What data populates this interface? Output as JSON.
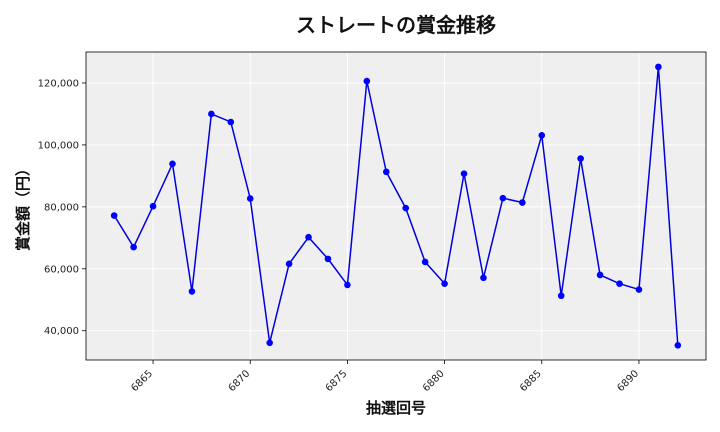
{
  "chart_data": {
    "type": "line",
    "title": "ストレートの賞金推移",
    "xlabel": "抽選回号",
    "ylabel": "賞金額（円）",
    "x": [
      6863,
      6864,
      6865,
      6866,
      6867,
      6868,
      6869,
      6870,
      6871,
      6872,
      6873,
      6874,
      6875,
      6876,
      6877,
      6878,
      6879,
      6880,
      6881,
      6882,
      6883,
      6884,
      6885,
      6886,
      6887,
      6888,
      6889,
      6890,
      6891,
      6892
    ],
    "y": [
      77200,
      67000,
      80200,
      93900,
      52700,
      110000,
      107400,
      82700,
      36100,
      61600,
      70200,
      63200,
      54800,
      120600,
      91300,
      79600,
      62200,
      55200,
      90700,
      57100,
      82800,
      81400,
      103100,
      51300,
      95600,
      58000,
      55200,
      53300,
      125200,
      35300
    ],
    "xticks": [
      6865,
      6870,
      6875,
      6880,
      6885,
      6890
    ],
    "xtick_labels": [
      "6865",
      "6870",
      "6875",
      "6880",
      "6885",
      "6890"
    ],
    "yticks": [
      40000,
      60000,
      80000,
      100000,
      120000
    ],
    "ytick_labels": [
      "40,000",
      "60,000",
      "80,000",
      "100,000",
      "120,000"
    ],
    "xlim": [
      6861.55,
      6893.45
    ],
    "ylim": [
      30550,
      130000
    ],
    "grid": true,
    "colors": {
      "line": "#0000dd",
      "marker": "#0000ff",
      "plot_bg": "#efefef",
      "grid": "#ffffff",
      "frame": "#000000"
    }
  }
}
